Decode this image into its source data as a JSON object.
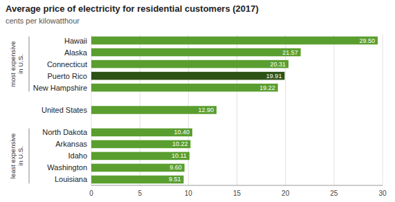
{
  "chart_data": {
    "type": "bar",
    "orientation": "horizontal",
    "title": "Average price of electricity for residential customers (2017)",
    "subtitle": "cents per kilowatthour",
    "categories": [
      "Hawaii",
      "Alaska",
      "Connecticut",
      "Puerto Rico",
      "New Hampshire",
      "United States",
      "North Dakota",
      "Arkansas",
      "Idaho",
      "Washington",
      "Louisiana"
    ],
    "values": [
      29.5,
      21.57,
      20.31,
      19.91,
      19.22,
      12.9,
      10.4,
      10.22,
      10.11,
      9.6,
      9.51
    ],
    "value_labels": [
      "29.50",
      "21.57",
      "20.31",
      "19.91",
      "19.22",
      "12.90",
      "10.40",
      "10.22",
      "10.11",
      "9.60",
      "9.51"
    ],
    "colors": [
      "#5a9e2f",
      "#5a9e2f",
      "#5a9e2f",
      "#2d5216",
      "#5a9e2f",
      "#5a9e2f",
      "#5a9e2f",
      "#5a9e2f",
      "#5a9e2f",
      "#5a9e2f",
      "#5a9e2f"
    ],
    "xlim": [
      0,
      30
    ],
    "xticks": [
      0,
      5,
      10,
      15,
      20,
      25,
      30
    ],
    "grid": true,
    "data_labels": true,
    "annotations": [
      "most expensive\nin U.S.",
      "least expensive\nin U.S."
    ]
  }
}
